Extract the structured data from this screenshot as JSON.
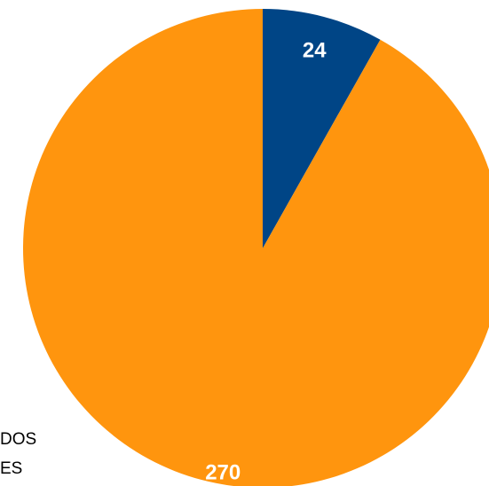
{
  "chart_data": {
    "type": "pie",
    "slices": [
      {
        "label_text": "24",
        "value": 24,
        "color": "#004586"
      },
      {
        "label_text": "270",
        "value": 270,
        "color": "#ff950e"
      }
    ],
    "legend_fragments": [
      "DOS",
      "ES"
    ]
  }
}
